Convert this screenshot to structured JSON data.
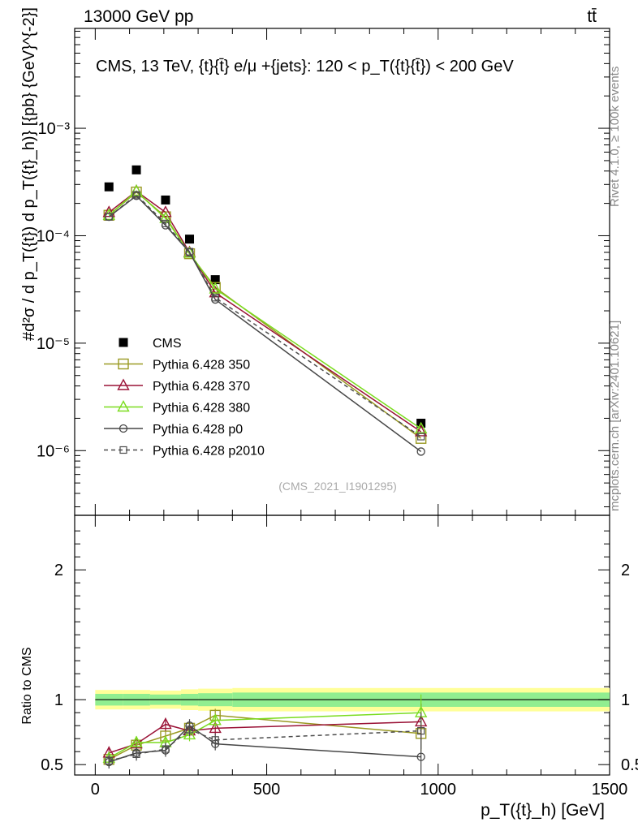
{
  "header": {
    "left": "13000 GeV pp",
    "right": "tt̄"
  },
  "side_labels": {
    "rivet": "Rivet 4.1.0, ≥ 100k events",
    "mcplots": "mcplots.cern.ch [arXiv:2401.10621]"
  },
  "chart_data": [
    {
      "type": "scatter",
      "panel": "main",
      "title": "CMS, 13 TeV, {t}{t̄} e/μ +{jets}: 120 <  p_T({t}{t̄}) < 200 GeV",
      "ylabel": "#d²σ / d p_T({t}) d p_T({t}_h)} [{pb} {GeV}^{-2}]",
      "xlabel": "p_T({t}_h) [GeV]",
      "yscale": "log",
      "ylim": [
        2.5e-07,
        0.0085
      ],
      "xlim": [
        -60,
        1500
      ],
      "y_ticks": [
        {
          "value": 1e-06,
          "label": "10⁻⁶"
        },
        {
          "value": 1e-05,
          "label": "10⁻⁵"
        },
        {
          "value": 0.0001,
          "label": "10⁻⁴"
        },
        {
          "value": 0.001,
          "label": "10⁻³"
        }
      ],
      "watermark": "(CMS_2021_I1901295)",
      "x": [
        40,
        120,
        205,
        275,
        350,
        950
      ],
      "series": [
        {
          "name": "CMS",
          "color": "#000000",
          "marker": "filled-square",
          "values": [
            0.000285,
            0.00041,
            0.000215,
            9.3e-05,
            3.9e-05,
            1.8e-06
          ],
          "errors": [
            5e-06,
            1e-05,
            5e-06,
            3e-06,
            1.5e-06,
            1e-07
          ]
        },
        {
          "name": "Pythia 6.428 350",
          "color": "#9a9a23",
          "marker": "open-square",
          "line": "solid",
          "values": [
            0.000155,
            0.000255,
            0.00015,
            6.8e-05,
            3.3e-05,
            1.3e-06
          ]
        },
        {
          "name": "Pythia 6.428 370",
          "color": "#9a1236",
          "marker": "open-triangle",
          "line": "solid",
          "values": [
            0.000165,
            0.00026,
            0.000165,
            7e-05,
            2.95e-05,
            1.5e-06
          ]
        },
        {
          "name": "Pythia 6.428 380",
          "color": "#7bdc1f",
          "marker": "open-triangle",
          "line": "solid",
          "values": [
            0.000155,
            0.00026,
            0.000145,
            6.9e-05,
            3.2e-05,
            1.6e-06
          ]
        },
        {
          "name": "Pythia 6.428 p0",
          "color": "#474747",
          "marker": "open-circle",
          "line": "solid",
          "values": [
            0.00015,
            0.000235,
            0.000125,
            7e-05,
            2.55e-05,
            9.8e-07
          ]
        },
        {
          "name": "Pythia 6.428 p2010",
          "color": "#4d4d4d",
          "marker": "small-open-square",
          "line": "dashed",
          "values": [
            0.00015,
            0.00024,
            0.00013,
            7.1e-05,
            2.65e-05,
            1.35e-06
          ]
        }
      ]
    },
    {
      "type": "scatter",
      "panel": "ratio",
      "ylabel": "Ratio to CMS",
      "xlabel": "p_T({t}_h) [GeV]",
      "ylim": [
        0.42,
        2.42
      ],
      "xlim": [
        -60,
        1500
      ],
      "y_ticks": [
        {
          "value": 0.5,
          "label": "0.5"
        },
        {
          "value": 1,
          "label": "1"
        },
        {
          "value": 2,
          "label": "2"
        }
      ],
      "x_ticks": [
        {
          "value": 0,
          "label": "0"
        },
        {
          "value": 500,
          "label": "500"
        },
        {
          "value": 1000,
          "label": "1000"
        },
        {
          "value": 1500,
          "label": "1500"
        }
      ],
      "band_edges": [
        0,
        80,
        160,
        250,
        300,
        400,
        1500
      ],
      "band_inner": [
        0.045,
        0.045,
        0.04,
        0.045,
        0.05,
        0.055
      ],
      "band_outer": [
        0.075,
        0.075,
        0.07,
        0.08,
        0.085,
        0.09
      ],
      "x": [
        40,
        120,
        205,
        275,
        350,
        950
      ],
      "series": [
        {
          "name": "Pythia 6.428 350",
          "values": [
            0.54,
            0.65,
            0.72,
            0.78,
            0.88,
            0.74
          ]
        },
        {
          "name": "Pythia 6.428 370",
          "values": [
            0.59,
            0.66,
            0.81,
            0.76,
            0.78,
            0.83
          ]
        },
        {
          "name": "Pythia 6.428 380",
          "values": [
            0.55,
            0.67,
            0.67,
            0.73,
            0.84,
            0.9
          ]
        },
        {
          "name": "Pythia 6.428 p0",
          "values": [
            0.52,
            0.59,
            0.61,
            0.8,
            0.66,
            0.56
          ]
        },
        {
          "name": "Pythia 6.428 p2010",
          "values": [
            0.53,
            0.58,
            0.62,
            0.77,
            0.69,
            0.76
          ]
        }
      ]
    }
  ]
}
